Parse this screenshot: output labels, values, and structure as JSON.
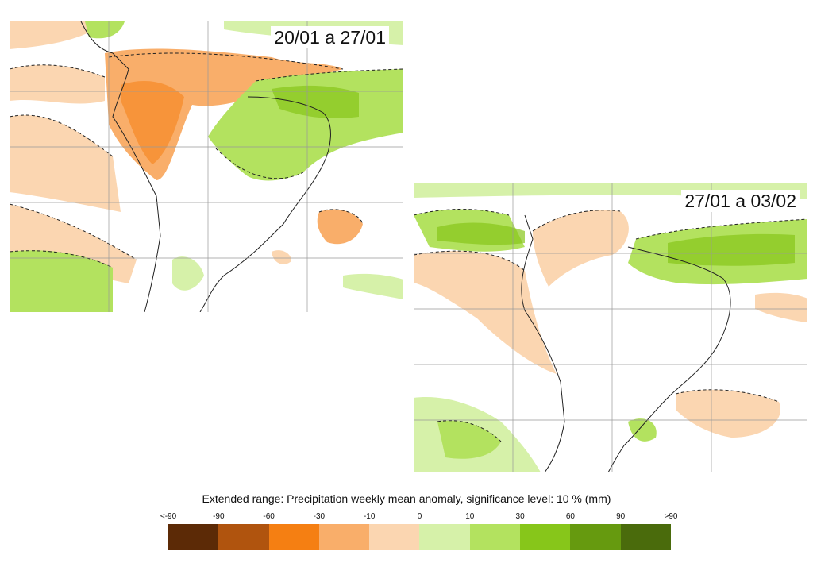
{
  "maps": [
    {
      "period": "20/01 a 27/01"
    },
    {
      "period": "27/01 a 03/02"
    }
  ],
  "legend": {
    "title": "Extended range: Precipitation weekly mean anomaly, significance level: 10 % (mm)",
    "ticks": [
      "<-90",
      "-90",
      "-60",
      "-30",
      "-10",
      "0",
      "10",
      "30",
      "60",
      "90",
      ">90"
    ],
    "colors": [
      "#5c2a06",
      "#b0540e",
      "#f57f12",
      "#f9ae6a",
      "#fbd6b1",
      "#d6f1a9",
      "#b3e25f",
      "#87c61a",
      "#669a0f",
      "#4a6b0c"
    ]
  }
}
